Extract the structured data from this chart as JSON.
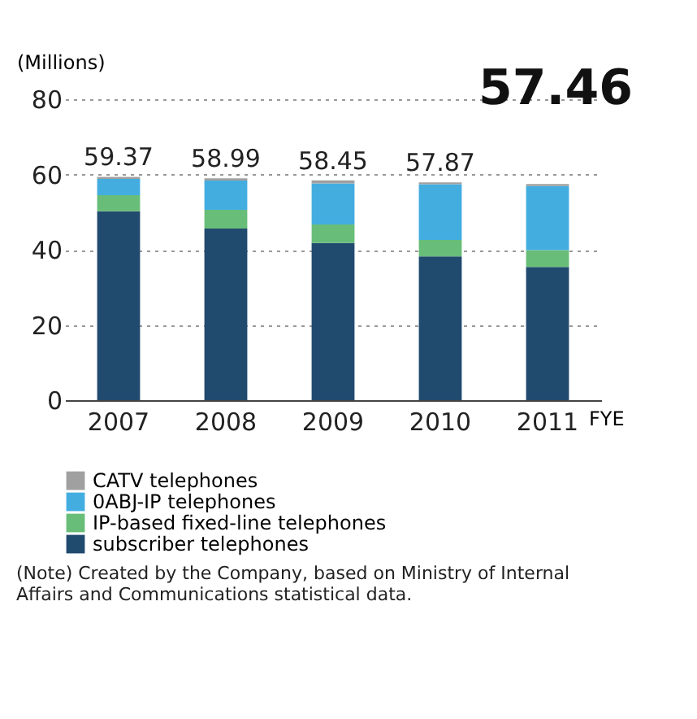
{
  "chart_data": {
    "type": "bar",
    "stacked": true,
    "ylabel": "(Millions)",
    "xlabel": "FYE",
    "categories": [
      "2007",
      "2008",
      "2009",
      "2010",
      "2011"
    ],
    "series": [
      {
        "name": "subscriber telephones",
        "color": "#214a6f",
        "values": [
          50.2,
          45.6,
          41.8,
          38.2,
          35.4
        ]
      },
      {
        "name": "IP-based fixed-line telephones",
        "color": "#68bd78",
        "values": [
          4.3,
          5.0,
          4.9,
          4.4,
          4.5
        ]
      },
      {
        "name": "0ABJ-IP telephones",
        "color": "#43ade0",
        "values": [
          4.3,
          7.8,
          10.9,
          14.8,
          17.0
        ]
      },
      {
        "name": "CATV telephones",
        "color": "#a0a0a0",
        "values": [
          0.57,
          0.59,
          0.85,
          0.47,
          0.56
        ]
      }
    ],
    "totals": [
      "59.37",
      "58.99",
      "58.45",
      "57.87",
      "57.46"
    ],
    "ylim": [
      0,
      80
    ],
    "yticks": [
      0,
      20,
      40,
      60,
      80
    ],
    "grid": "y",
    "legend": "bottom",
    "annotations": [
      "(Note) Created by the Company, based on Ministry of Internal Affairs and Communications statistical data."
    ]
  }
}
